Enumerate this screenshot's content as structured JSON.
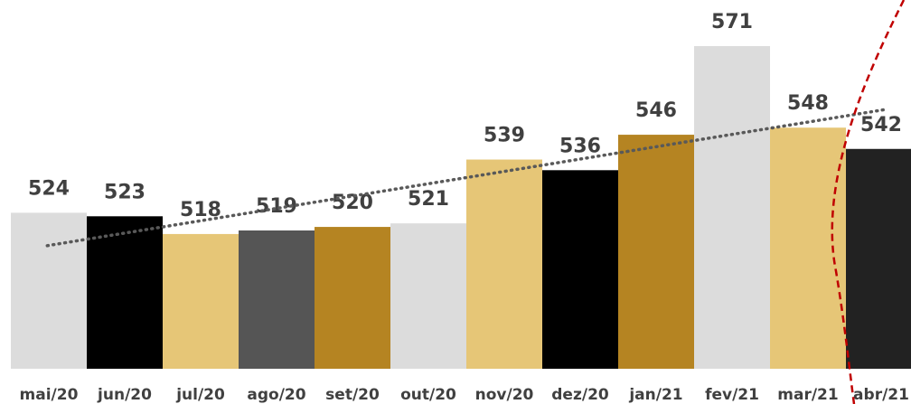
{
  "chart_data": {
    "type": "bar",
    "categories": [
      "mai/20",
      "jun/20",
      "jul/20",
      "ago/20",
      "set/20",
      "out/20",
      "nov/20",
      "dez/20",
      "jan/21",
      "fev/21",
      "mar/21",
      "abr/21"
    ],
    "values": [
      524,
      523,
      518,
      519,
      520,
      521,
      539,
      536,
      546,
      571,
      548,
      542
    ],
    "colors": [
      "#dcdcdc",
      "#000000",
      "#e6c677",
      "#555555",
      "#b58422",
      "#dcdcdc",
      "#e6c677",
      "#000000",
      "#b58422",
      "#dcdcdc",
      "#e6c677",
      "#222222"
    ],
    "ylim": [
      480,
      584
    ],
    "trendline": "linear"
  }
}
